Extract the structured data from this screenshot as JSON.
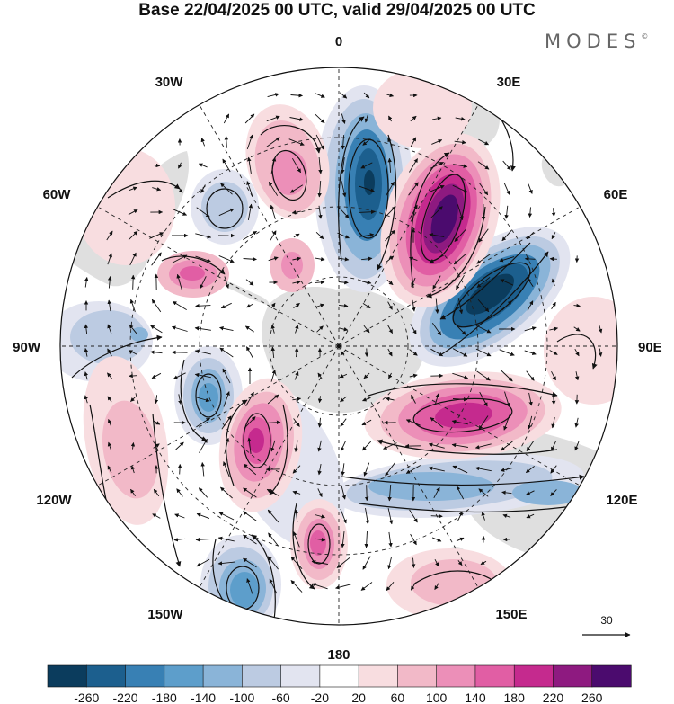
{
  "title": "Base 22/04/2025 00 UTC, valid 29/04/2025 00 UTC",
  "brand": {
    "name": "MODES",
    "mark": "©"
  },
  "longitude_labels": {
    "lon_0": "0",
    "lon_30e": "30E",
    "lon_60e": "60E",
    "lon_90e": "90E",
    "lon_120e": "120E",
    "lon_150e": "150E",
    "lon_180": "180",
    "lon_150w": "150W",
    "lon_120w": "120W",
    "lon_90w": "90W",
    "lon_60w": "60W",
    "lon_30w": "30W"
  },
  "reference_vector": {
    "label": "30"
  },
  "colorbar": {
    "colors": [
      "#0b3c5d",
      "#1c5f8e",
      "#3880b4",
      "#5d9ecb",
      "#8ab4d8",
      "#bccbe2",
      "#e2e4f0",
      "#ffffff",
      "#f8dde0",
      "#f2b9c8",
      "#ec8fb8",
      "#e15ea4",
      "#c52a8e",
      "#8e1a80",
      "#4b0b6e"
    ],
    "tick_labels": [
      "-260",
      "-220",
      "-180",
      "-140",
      "-100",
      "-60",
      "-20",
      "20",
      "60",
      "100",
      "140",
      "180",
      "220",
      "260"
    ]
  },
  "field": {
    "colors": {
      "neg_weak": "#e2e4f0",
      "neg_light": "#bccbe2",
      "neg_mid": "#8ab4d8",
      "neg_strong": "#5d9ecb",
      "neg_vstrong": "#3880b4",
      "neg_deep": "#1c5f8e",
      "neg_core": "#0b3c5d",
      "pos_weak": "#f8dde0",
      "pos_light": "#f2b9c8",
      "pos_mid": "#ec8fb8",
      "pos_strong": "#e15ea4",
      "pos_vstrong": "#c52a8e",
      "pos_deep": "#8e1a80",
      "pos_core": "#4b0b6e",
      "land": "#d9d9d9"
    }
  }
}
